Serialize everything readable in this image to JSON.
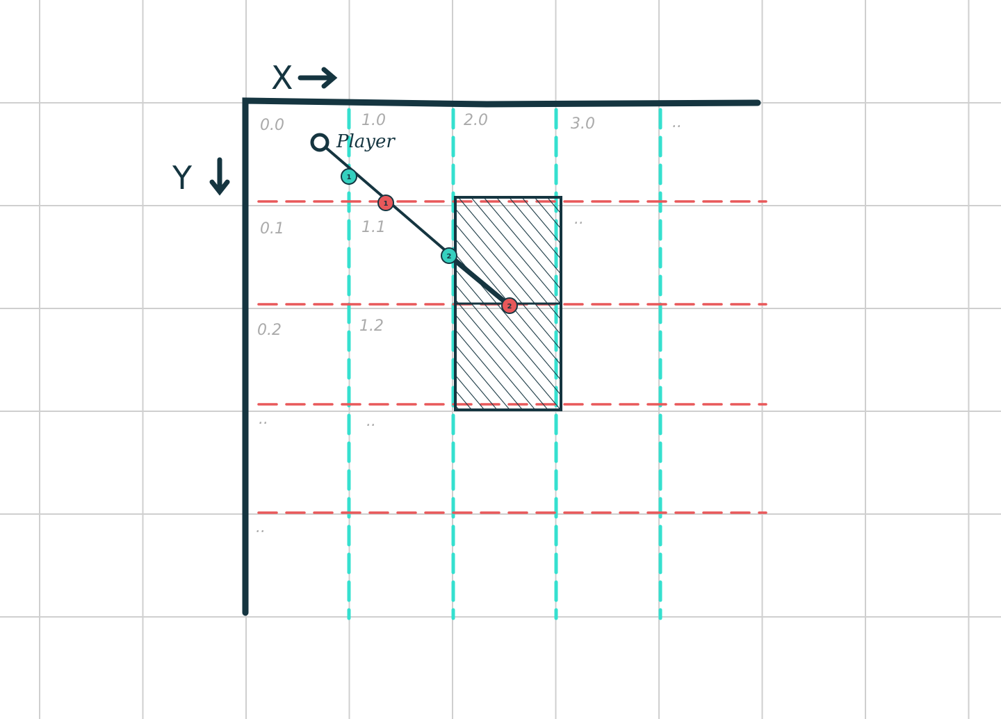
{
  "axes": {
    "x_label": "X",
    "y_label": "Y"
  },
  "cell_labels": [
    "0.0",
    "1.0",
    "2.0",
    "3.0",
    "..",
    "0.1",
    "1.1",
    "..",
    "0.2",
    "1.2",
    "..",
    "..",
    ".."
  ],
  "player": "Player",
  "vertical_hits": [
    "1",
    "2"
  ],
  "horizontal_hits": [
    "1",
    "2"
  ]
}
